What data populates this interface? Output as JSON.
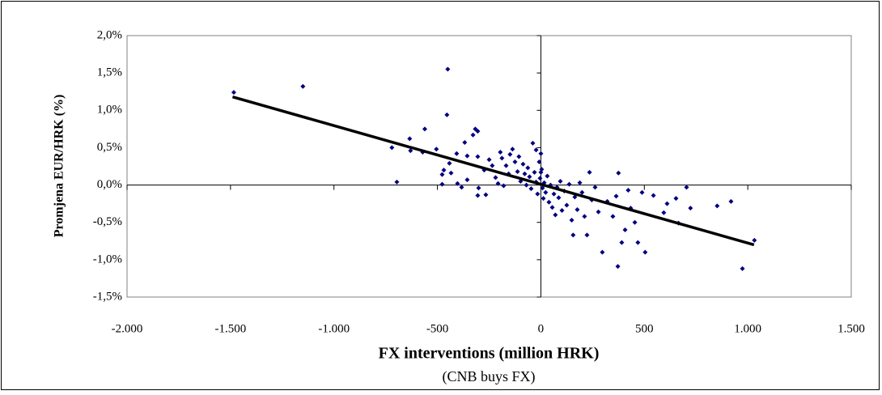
{
  "chart_data": {
    "type": "scatter",
    "y_label": "Promjena EUR/HRK  (%)",
    "x_label": "FX interventions (million HRK)",
    "x_label_note": "(CNB buys FX)",
    "xlim": [
      -2000,
      1500
    ],
    "xticks": [
      {
        "value": -2000,
        "label": "-2.000"
      },
      {
        "value": -1500,
        "label": "-1.500"
      },
      {
        "value": -1000,
        "label": "-1.000"
      },
      -500,
      0,
      500,
      {
        "value": 1000,
        "label": "1.000"
      },
      {
        "value": 1500,
        "label": "1.500"
      }
    ],
    "ylim": [
      -1.5,
      2.0
    ],
    "yticks": [
      {
        "value": -1.5,
        "label": "-1,5%"
      },
      {
        "value": -1.0,
        "label": "-1,0%"
      },
      {
        "value": -0.5,
        "label": "-0,5%"
      },
      {
        "value": 0,
        "label": "0,0%"
      },
      {
        "value": 0.5,
        "label": "0,5%"
      },
      {
        "value": 1.0,
        "label": "1,0%"
      },
      {
        "value": 1.5,
        "label": "1,5%"
      },
      {
        "value": 2.0,
        "label": "2,0%"
      }
    ],
    "series": [
      {
        "color": "#000080",
        "x": [
          -1484,
          -1150,
          -450,
          -454,
          -720,
          -696,
          -561,
          -571,
          -505,
          -477,
          -477,
          -469,
          -434,
          -403,
          -383,
          -356,
          -328,
          -317,
          -305,
          -305,
          -301,
          -305,
          -368,
          -407,
          -634,
          -630,
          -274,
          -250,
          -219,
          -207,
          -196,
          -188,
          -180,
          -168,
          -156,
          -149,
          -137,
          -125,
          -113,
          -106,
          -98,
          -86,
          -78,
          -70,
          -63,
          -55,
          -47,
          -39,
          -31,
          -23,
          -16,
          -8,
          -4,
          0,
          4,
          8,
          12,
          16,
          23,
          31,
          39,
          47,
          55,
          63,
          70,
          78,
          86,
          94,
          102,
          113,
          125,
          137,
          149,
          156,
          164,
          176,
          188,
          199,
          211,
          223,
          235,
          246,
          262,
          278,
          297,
          321,
          348,
          364,
          372,
          375,
          391,
          407,
          422,
          434,
          454,
          469,
          489,
          504,
          544,
          594,
          610,
          653,
          665,
          704,
          723,
          852,
          919,
          974,
          1032,
          -356,
          -442,
          -266,
          -235,
          -23,
          0
        ],
        "values": [
          1.24,
          1.32,
          1.55,
          0.94,
          0.5,
          0.04,
          0.75,
          0.44,
          0.48,
          0.14,
          0.01,
          0.2,
          0.16,
          0.02,
          -0.03,
          0.07,
          0.67,
          0.75,
          0.72,
          0.38,
          -0.04,
          -0.14,
          0.57,
          0.42,
          0.62,
          0.46,
          0.2,
          0.34,
          0.1,
          0.02,
          0.44,
          0.36,
          -0.01,
          0.26,
          0.15,
          0.41,
          0.48,
          0.31,
          0.18,
          0.38,
          0.05,
          0.28,
          0.15,
          0.0,
          0.23,
          0.11,
          -0.05,
          0.56,
          0.17,
          0.04,
          -0.12,
          0.31,
          0.09,
          0.42,
          0.21,
          -0.04,
          -0.18,
          0.03,
          -0.1,
          0.12,
          -0.23,
          0.0,
          -0.3,
          -0.12,
          -0.4,
          -0.03,
          -0.17,
          0.05,
          -0.34,
          -0.08,
          -0.27,
          0.01,
          -0.47,
          -0.67,
          -0.16,
          -0.33,
          0.03,
          -0.1,
          -0.42,
          -0.67,
          0.17,
          -0.2,
          -0.03,
          -0.36,
          -0.9,
          -0.22,
          -0.42,
          -0.15,
          -1.09,
          0.16,
          -0.77,
          -0.6,
          -0.07,
          -0.31,
          -0.5,
          -0.77,
          -0.1,
          -0.9,
          -0.14,
          -0.37,
          -0.25,
          -0.18,
          -0.51,
          -0.03,
          -0.31,
          -0.28,
          -0.22,
          -1.12,
          -0.74,
          0.39,
          0.29,
          -0.13,
          0.26,
          0.47,
          0.17
        ]
      }
    ],
    "trendline": {
      "color": "#000000",
      "x": [
        -1490,
        1030
      ],
      "values": [
        1.18,
        -0.8
      ]
    }
  }
}
